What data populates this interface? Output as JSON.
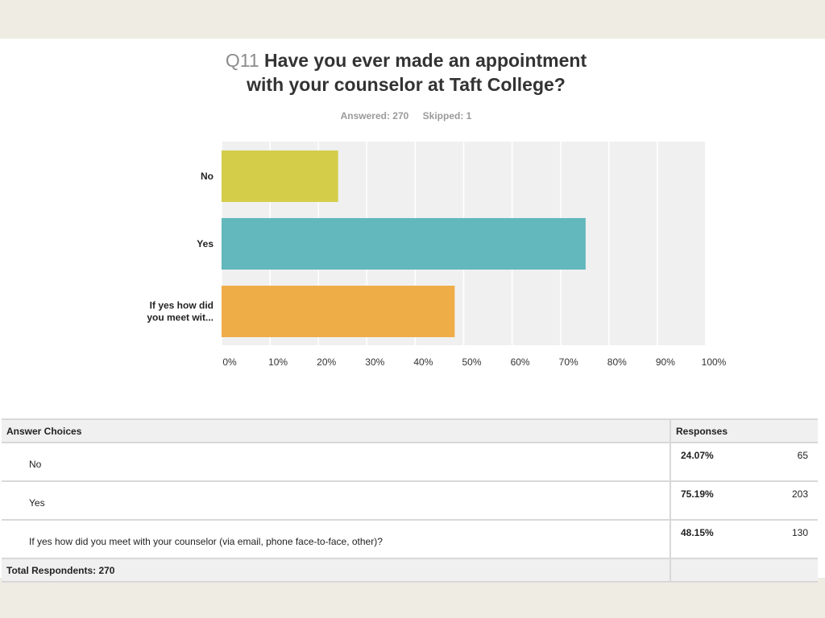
{
  "question": {
    "number": "Q11",
    "title_line1": "Have you ever made an appointment",
    "title_line2": "with your counselor at Taft College?",
    "answered": "Answered: 270",
    "skipped": "Skipped: 1"
  },
  "chart_data": {
    "type": "bar",
    "orientation": "horizontal",
    "categories": [
      [
        "No"
      ],
      [
        "Yes"
      ],
      [
        "If yes how did",
        "you meet wit..."
      ]
    ],
    "values": [
      24.07,
      75.19,
      48.15
    ],
    "colors": [
      "#d3cd4a",
      "#62b8bc",
      "#efad47"
    ],
    "xticks": [
      "0%",
      "10%",
      "20%",
      "30%",
      "40%",
      "50%",
      "60%",
      "70%",
      "80%",
      "90%",
      "100%"
    ],
    "xlim": [
      0,
      100
    ],
    "grid": true,
    "plot_background": "#f0f0f0",
    "title": "Q11 Have you ever made an appointment with your counselor at Taft College?"
  },
  "table": {
    "header_choices": "Answer Choices",
    "header_responses": "Responses",
    "rows": [
      {
        "choice": "No",
        "percent": "24.07%",
        "count": "65"
      },
      {
        "choice": "Yes",
        "percent": "75.19%",
        "count": "203"
      },
      {
        "choice": "If yes how did you meet with your counselor (via email, phone face-to-face, other)?",
        "percent": "48.15%",
        "count": "130"
      }
    ],
    "total": "Total Respondents: 270"
  }
}
